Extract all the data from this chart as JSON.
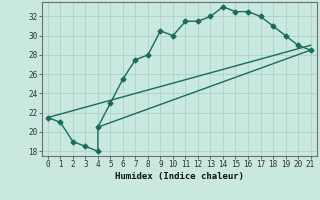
{
  "line1_x": [
    0,
    1,
    2,
    3,
    4,
    4,
    5,
    6,
    7,
    8,
    9,
    10,
    11,
    12,
    13,
    14,
    15,
    16,
    17,
    18,
    19,
    20,
    21
  ],
  "line1_y": [
    21.5,
    21.0,
    19.0,
    18.5,
    18.0,
    20.5,
    23.0,
    25.5,
    27.5,
    28.0,
    30.5,
    30.0,
    31.5,
    31.5,
    32.0,
    33.0,
    32.5,
    32.5,
    32.0,
    31.0,
    30.0,
    29.0,
    28.5
  ],
  "line2_x": [
    0,
    21
  ],
  "line2_y": [
    21.5,
    29.0
  ],
  "line3_x": [
    4,
    21
  ],
  "line3_y": [
    20.5,
    28.5
  ],
  "line_color": "#1a6b5a",
  "bg_color": "#c8e8e0",
  "grid_color": "#b0cfc8",
  "xlabel": "Humidex (Indice chaleur)",
  "xlim": [
    -0.5,
    21.5
  ],
  "ylim": [
    17.5,
    33.5
  ],
  "xticks": [
    0,
    1,
    2,
    3,
    4,
    5,
    6,
    7,
    8,
    9,
    10,
    11,
    12,
    13,
    14,
    15,
    16,
    17,
    18,
    19,
    20,
    21
  ],
  "yticks": [
    18,
    20,
    22,
    24,
    26,
    28,
    30,
    32
  ],
  "marker": "D",
  "markersize": 2.5,
  "linewidth": 1.0,
  "label_fontsize": 6.5,
  "tick_fontsize": 5.5
}
